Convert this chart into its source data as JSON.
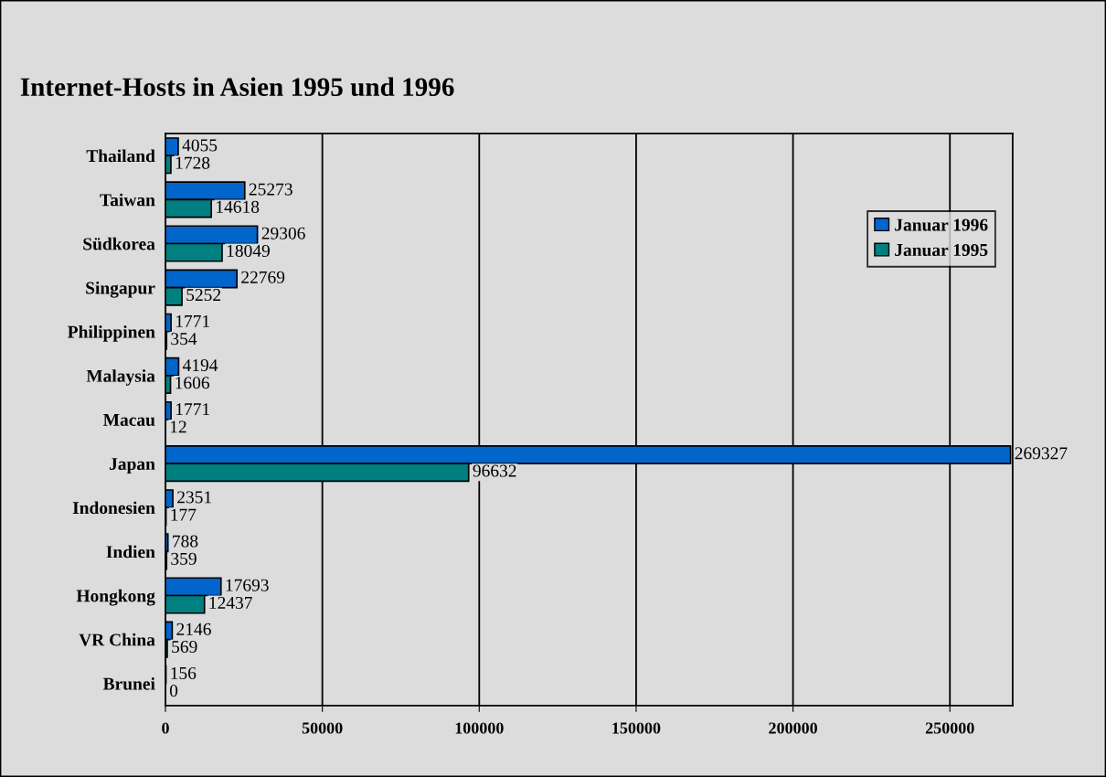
{
  "chart_data": {
    "type": "bar",
    "orientation": "horizontal",
    "title": "Internet-Hosts in Asien 1995 und 1996",
    "categories": [
      "Thailand",
      "Taiwan",
      "Südkorea",
      "Singapur",
      "Philippinen",
      "Malaysia",
      "Macau",
      "Japan",
      "Indonesien",
      "Indien",
      "Hongkong",
      "VR China",
      "Brunei"
    ],
    "series": [
      {
        "name": "Januar 1996",
        "color": "#0066cc",
        "values": [
          4055,
          25273,
          29306,
          22769,
          1771,
          4194,
          1771,
          269327,
          2351,
          788,
          17693,
          2146,
          156
        ]
      },
      {
        "name": "Januar 1995",
        "color": "#008080",
        "values": [
          1728,
          14618,
          18049,
          5252,
          354,
          1606,
          12,
          96632,
          177,
          359,
          12437,
          569,
          0
        ]
      }
    ],
    "xlim": [
      0,
      270000
    ],
    "xticks": [
      0,
      50000,
      100000,
      150000,
      200000,
      250000
    ],
    "grid": "x",
    "legend": "top right",
    "data_labels": true
  }
}
